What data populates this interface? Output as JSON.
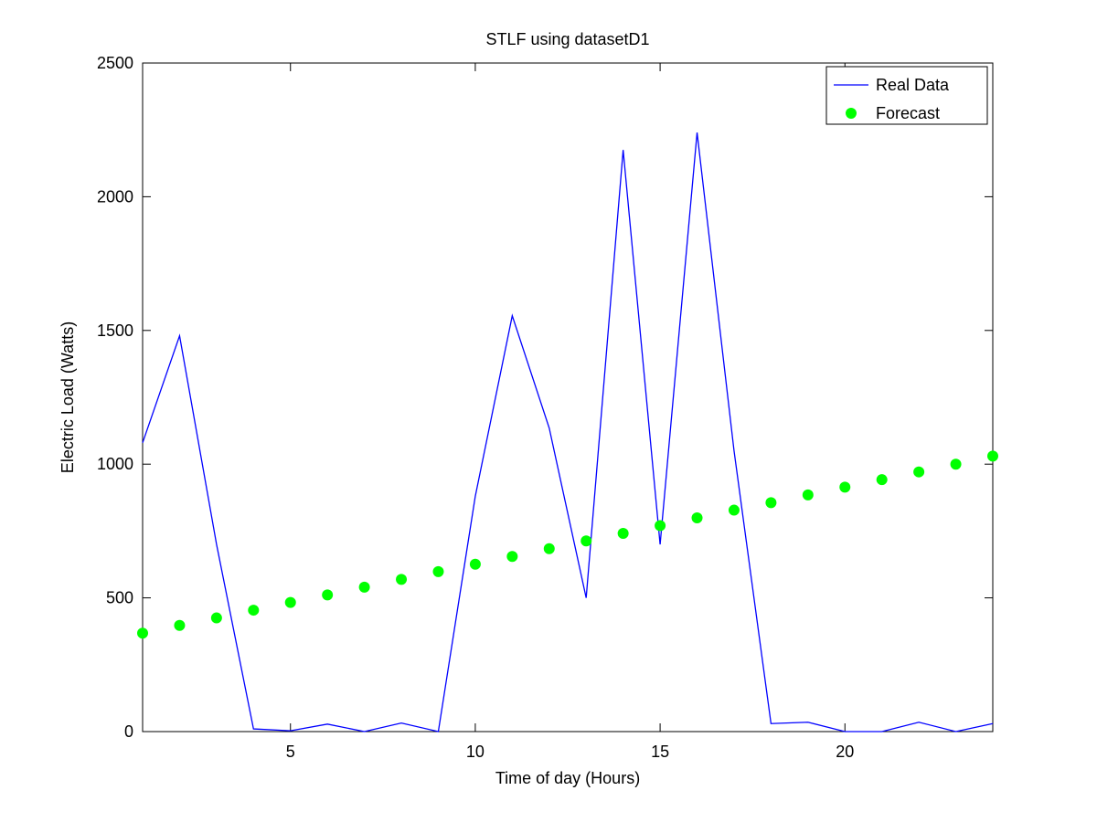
{
  "chart_data": {
    "type": "line",
    "title": "STLF using datasetD1",
    "xlabel": "Time of day (Hours)",
    "ylabel": "Electric Load (Watts)",
    "xlim": [
      1,
      24
    ],
    "ylim": [
      0,
      2500
    ],
    "xticks": [
      5,
      10,
      15,
      20
    ],
    "yticks": [
      0,
      500,
      1000,
      1500,
      2000,
      2500
    ],
    "grid": false,
    "legend_position": "top-right",
    "x": [
      1,
      2,
      3,
      4,
      5,
      6,
      7,
      8,
      9,
      10,
      11,
      12,
      13,
      14,
      15,
      16,
      17,
      18,
      19,
      20,
      21,
      22,
      23,
      24
    ],
    "series": [
      {
        "name": "Real Data",
        "style": "line",
        "color": "#0000ff",
        "values": [
          1080,
          1480,
          700,
          10,
          3,
          28,
          0,
          32,
          0,
          880,
          1555,
          1135,
          500,
          2175,
          700,
          2240,
          1050,
          30,
          35,
          0,
          0,
          35,
          0,
          30
        ]
      },
      {
        "name": "Forecast",
        "style": "marker",
        "color": "#00ff00",
        "values": [
          368,
          397,
          425,
          454,
          483,
          511,
          540,
          569,
          598,
          626,
          655,
          684,
          713,
          741,
          770,
          799,
          828,
          856,
          885,
          914,
          942,
          971,
          1000,
          1030
        ]
      }
    ]
  }
}
